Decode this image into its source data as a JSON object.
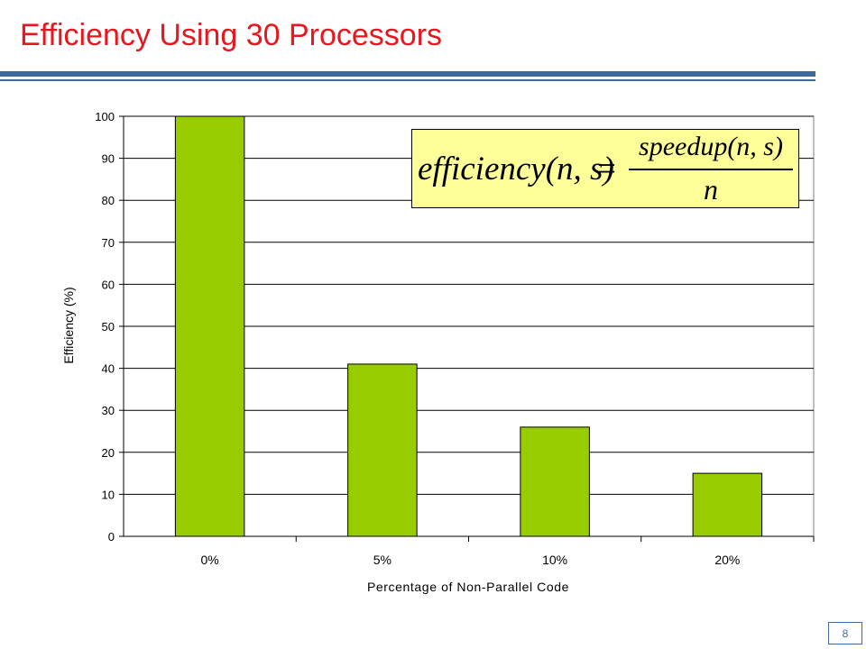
{
  "slide": {
    "title": "Efficiency Using 30 Processors",
    "page_number": "8",
    "accent_color": "#3d6a9a",
    "title_color": "#e8161e"
  },
  "formula": {
    "lhs": "efficiency(n, s)",
    "equals": "=",
    "numerator": "speedup(n, s)",
    "denominator": "n",
    "background": "#ffff99"
  },
  "chart_data": {
    "type": "bar",
    "categories": [
      "0%",
      "5%",
      "10%",
      "20%"
    ],
    "values": [
      100,
      41,
      26,
      15
    ],
    "xlabel": "Percentage of Non-Parallel Code",
    "ylabel": "Efficiency (%)",
    "ylim": [
      0,
      100
    ],
    "yticks": [
      0,
      10,
      20,
      30,
      40,
      50,
      60,
      70,
      80,
      90,
      100
    ],
    "grid": true,
    "legend": "none",
    "bar_color": "#99cc00"
  }
}
